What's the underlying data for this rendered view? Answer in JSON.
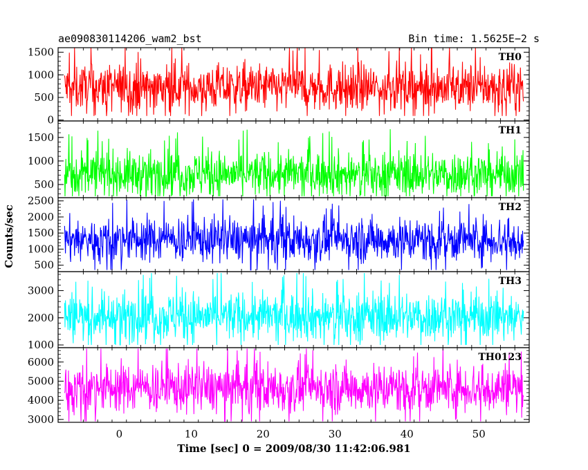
{
  "header": {
    "left": "ae090830114206_wam2_bst",
    "right": "Bin time: 1.5625E−2 s"
  },
  "chart_data": {
    "type": "line",
    "xlabel": "Time [sec] 0 = 2009/08/30 11:42:06.981",
    "ylabel": "Counts/sec",
    "xlim": [
      -8.5,
      57
    ],
    "x_ticks": [
      "0",
      "10",
      "20",
      "30",
      "40",
      "50"
    ],
    "x_tick_values": [
      0,
      10,
      20,
      30,
      40,
      50
    ],
    "data_x_range": [
      -7.6,
      56.2
    ],
    "panels": [
      {
        "name": "TH0",
        "color": "#ff0000",
        "ylim": [
          -20,
          1600
        ],
        "ticks": [
          "0",
          "500",
          "1000",
          "1500"
        ],
        "tick_values": [
          0,
          500,
          1000,
          1500
        ],
        "mean": 720,
        "spread": 520,
        "min": 90,
        "max": 1600
      },
      {
        "name": "TH1",
        "color": "#00ff00",
        "ylim": [
          220,
          1850
        ],
        "ticks": [
          "500",
          "1000",
          "1500"
        ],
        "tick_values": [
          500,
          1000,
          1500
        ],
        "mean": 720,
        "spread": 480,
        "min": 250,
        "max": 1800
      },
      {
        "name": "TH2",
        "color": "#0000ff",
        "ylim": [
          300,
          2600
        ],
        "ticks": [
          "500",
          "1000",
          "1500",
          "2000",
          "2500"
        ],
        "tick_values": [
          500,
          1000,
          1500,
          2000,
          2500
        ],
        "mean": 1300,
        "spread": 700,
        "min": 350,
        "max": 2550
      },
      {
        "name": "TH3",
        "color": "#00ffff",
        "ylim": [
          900,
          3700
        ],
        "ticks": [
          "1000",
          "2000",
          "3000"
        ],
        "tick_values": [
          1000,
          2000,
          3000
        ],
        "mean": 2050,
        "spread": 900,
        "min": 1000,
        "max": 3650
      },
      {
        "name": "TH0123",
        "color": "#ff00ff",
        "ylim": [
          2850,
          6750
        ],
        "ticks": [
          "3000",
          "4000",
          "5000",
          "6000"
        ],
        "tick_values": [
          3000,
          4000,
          5000,
          6000
        ],
        "mean": 4650,
        "spread": 1300,
        "min": 2900,
        "max": 6700
      }
    ]
  }
}
